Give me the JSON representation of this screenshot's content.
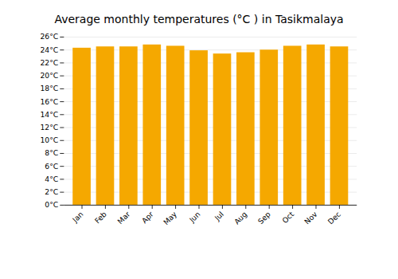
{
  "chart_data": {
    "type": "bar",
    "title": "Average monthly temperatures (°C ) in Tasikmalaya",
    "categories": [
      "Jan",
      "Feb",
      "Mar",
      "Apr",
      "May",
      "Jun",
      "Jul",
      "Aug",
      "Sep",
      "Oct",
      "Nov",
      "Dec"
    ],
    "values": [
      24.3,
      24.5,
      24.5,
      24.8,
      24.6,
      23.9,
      23.4,
      23.6,
      24.0,
      24.6,
      24.8,
      24.5
    ],
    "color": "#F5A800",
    "ylim": [
      0,
      26
    ],
    "yticks": [
      {
        "value": 0,
        "label": "0°C"
      },
      {
        "value": 2,
        "label": "2°C"
      },
      {
        "value": 4,
        "label": "4°C"
      },
      {
        "value": 6,
        "label": "6°C"
      },
      {
        "value": 8,
        "label": "8°C"
      },
      {
        "value": 10,
        "label": "10°C"
      },
      {
        "value": 12,
        "label": "12°C"
      },
      {
        "value": 14,
        "label": "14°C"
      },
      {
        "value": 16,
        "label": "16°C"
      },
      {
        "value": 18,
        "label": "18°C"
      },
      {
        "value": 20,
        "label": "20°C"
      },
      {
        "value": 22,
        "label": "22°C"
      },
      {
        "value": 24,
        "label": "24°C"
      },
      {
        "value": 26,
        "label": "26°C"
      }
    ],
    "grid": true
  }
}
